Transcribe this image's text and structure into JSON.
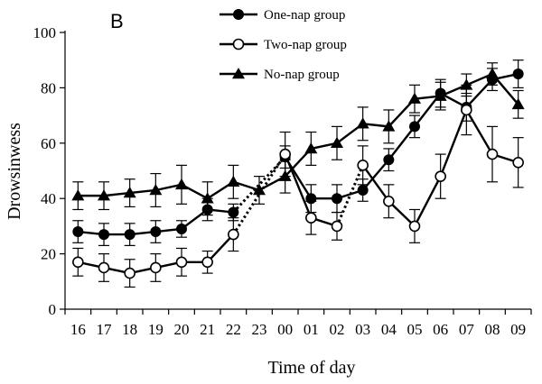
{
  "chart_data": {
    "type": "line",
    "panel_label": "B",
    "xlabel": "Time of day",
    "ylabel": "Drowsinwess",
    "ylim": [
      0,
      100
    ],
    "yticks": [
      0,
      20,
      40,
      60,
      80,
      100
    ],
    "categories": [
      "16",
      "17",
      "18",
      "19",
      "20",
      "21",
      "22",
      "23",
      "00",
      "01",
      "02",
      "03",
      "04",
      "05",
      "06",
      "07",
      "08",
      "09"
    ],
    "grid": false,
    "legend_position": "top",
    "series": [
      {
        "name": "One-nap group",
        "marker": "filled-circle",
        "points": [
          {
            "x": "16",
            "y": 28,
            "err": 4
          },
          {
            "x": "17",
            "y": 27,
            "err": 4
          },
          {
            "x": "18",
            "y": 27,
            "err": 4
          },
          {
            "x": "19",
            "y": 28,
            "err": 4
          },
          {
            "x": "20",
            "y": 29,
            "err": 3
          },
          {
            "x": "21",
            "y": 36,
            "err": 4
          },
          {
            "x": "22",
            "y": 35,
            "err": 3
          },
          {
            "x": "00",
            "y": 55,
            "err": 4
          },
          {
            "x": "01",
            "y": 40,
            "err": 5
          },
          {
            "x": "02",
            "y": 40,
            "err": 5
          },
          {
            "x": "03",
            "y": 43,
            "err": 4
          },
          {
            "x": "04",
            "y": 54,
            "err": 4
          },
          {
            "x": "05",
            "y": 66,
            "err": 4
          },
          {
            "x": "06",
            "y": 78,
            "err": 5
          },
          {
            "x": "07",
            "y": 73,
            "err": 5
          },
          {
            "x": "08",
            "y": 83,
            "err": 4
          },
          {
            "x": "09",
            "y": 85,
            "err": 5
          }
        ],
        "dotted_segments": [
          [
            "22",
            "00"
          ]
        ]
      },
      {
        "name": "Two-nap group",
        "marker": "open-circle",
        "points": [
          {
            "x": "16",
            "y": 17,
            "err": 5
          },
          {
            "x": "17",
            "y": 15,
            "err": 5
          },
          {
            "x": "18",
            "y": 13,
            "err": 5
          },
          {
            "x": "19",
            "y": 15,
            "err": 5
          },
          {
            "x": "20",
            "y": 17,
            "err": 5
          },
          {
            "x": "21",
            "y": 17,
            "err": 4
          },
          {
            "x": "22",
            "y": 27,
            "err": 6
          },
          {
            "x": "00",
            "y": 56,
            "err": 8
          },
          {
            "x": "01",
            "y": 33,
            "err": 6
          },
          {
            "x": "02",
            "y": 30,
            "err": 5
          },
          {
            "x": "03",
            "y": 52,
            "err": 7
          },
          {
            "x": "04",
            "y": 39,
            "err": 6
          },
          {
            "x": "05",
            "y": 30,
            "err": 6
          },
          {
            "x": "06",
            "y": 48,
            "err": 8
          },
          {
            "x": "07",
            "y": 72,
            "err": 9
          },
          {
            "x": "08",
            "y": 56,
            "err": 10
          },
          {
            "x": "09",
            "y": 53,
            "err": 9
          }
        ],
        "dotted_segments": [
          [
            "22",
            "00"
          ],
          [
            "02",
            "03"
          ]
        ]
      },
      {
        "name": "No-nap group",
        "marker": "filled-triangle",
        "points": [
          {
            "x": "16",
            "y": 41,
            "err": 5
          },
          {
            "x": "17",
            "y": 41,
            "err": 5
          },
          {
            "x": "18",
            "y": 42,
            "err": 5
          },
          {
            "x": "19",
            "y": 43,
            "err": 6
          },
          {
            "x": "20",
            "y": 45,
            "err": 7
          },
          {
            "x": "21",
            "y": 40,
            "err": 6
          },
          {
            "x": "22",
            "y": 46,
            "err": 6
          },
          {
            "x": "23",
            "y": 43,
            "err": 5
          },
          {
            "x": "00",
            "y": 48,
            "err": 6
          },
          {
            "x": "01",
            "y": 58,
            "err": 6
          },
          {
            "x": "02",
            "y": 60,
            "err": 6
          },
          {
            "x": "03",
            "y": 67,
            "err": 6
          },
          {
            "x": "04",
            "y": 66,
            "err": 6
          },
          {
            "x": "05",
            "y": 76,
            "err": 5
          },
          {
            "x": "06",
            "y": 77,
            "err": 5
          },
          {
            "x": "07",
            "y": 81,
            "err": 4
          },
          {
            "x": "08",
            "y": 85,
            "err": 4
          },
          {
            "x": "09",
            "y": 74,
            "err": 5
          }
        ],
        "dotted_segments": []
      }
    ]
  }
}
